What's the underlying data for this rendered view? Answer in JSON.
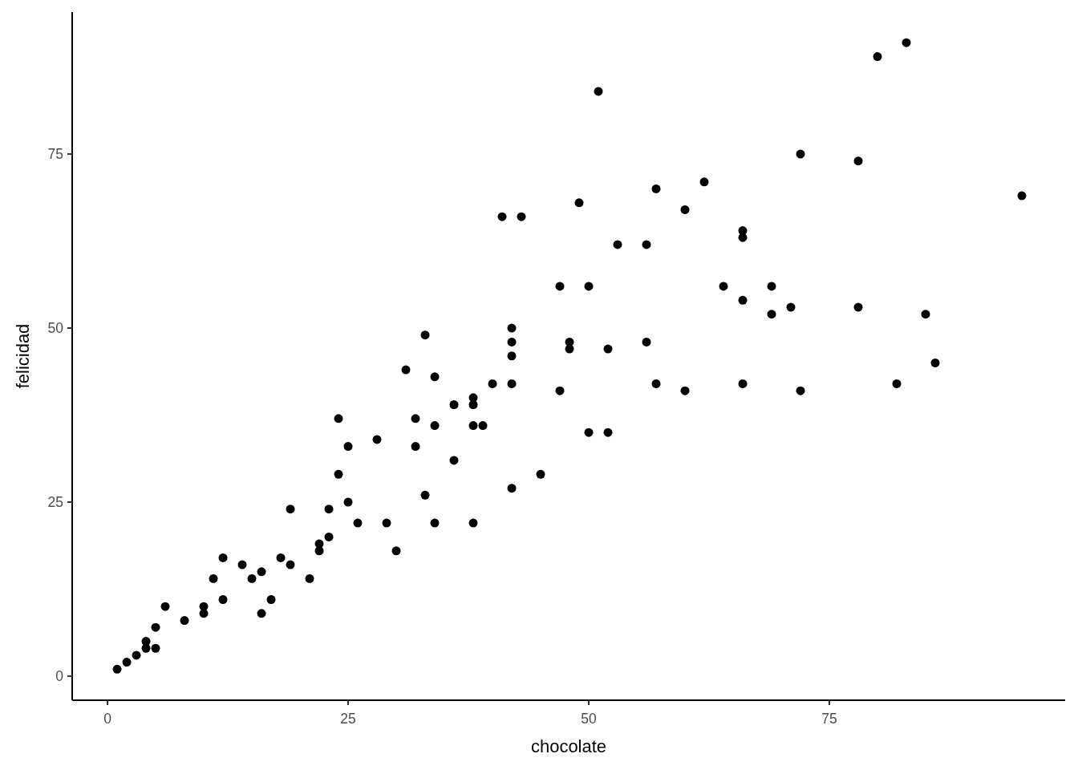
{
  "chart_data": {
    "type": "scatter",
    "xlabel": "chocolate",
    "ylabel": "felicidad",
    "xlim": [
      -3.67,
      99.5
    ],
    "ylim": [
      -3.46,
      95.4
    ],
    "xticks": [
      0,
      25,
      50,
      75
    ],
    "yticks": [
      0,
      25,
      50,
      75
    ],
    "grid": false,
    "marker": "circle",
    "series": [
      {
        "color": "#000000",
        "x": [
          1,
          2,
          3,
          4,
          4,
          5,
          5,
          6,
          8,
          10,
          10,
          11,
          12,
          12,
          14,
          15,
          16,
          16,
          17,
          18,
          19,
          19,
          21,
          22,
          22,
          23,
          23,
          24,
          24,
          25,
          25,
          26,
          28,
          29,
          30,
          31,
          32,
          32,
          33,
          33,
          34,
          34,
          34,
          36,
          36,
          38,
          38,
          38,
          38,
          39,
          40,
          41,
          42,
          42,
          42,
          42,
          42,
          43,
          45,
          47,
          47,
          48,
          48,
          49,
          50,
          50,
          51,
          52,
          52,
          53,
          56,
          56,
          57,
          57,
          60,
          60,
          62,
          64,
          66,
          66,
          66,
          66,
          69,
          69,
          71,
          72,
          72,
          78,
          78,
          80,
          82,
          83,
          85,
          86,
          95
        ],
        "values": [
          1,
          2,
          3,
          4,
          5,
          4,
          7,
          10,
          8,
          10,
          9,
          14,
          17,
          11,
          16,
          14,
          15,
          9,
          11,
          17,
          24,
          16,
          14,
          19,
          18,
          24,
          20,
          37,
          29,
          33,
          25,
          22,
          34,
          22,
          18,
          44,
          37,
          33,
          49,
          26,
          43,
          36,
          22,
          39,
          31,
          40,
          39,
          36,
          22,
          36,
          42,
          66,
          50,
          48,
          46,
          42,
          27,
          66,
          29,
          56,
          41,
          48,
          47,
          68,
          56,
          35,
          84,
          47,
          35,
          62,
          62,
          48,
          70,
          42,
          67,
          41,
          71,
          56,
          64,
          63,
          54,
          42,
          56,
          52,
          53,
          75,
          41,
          74,
          53,
          89,
          42,
          91,
          52,
          45,
          69
        ]
      }
    ]
  }
}
